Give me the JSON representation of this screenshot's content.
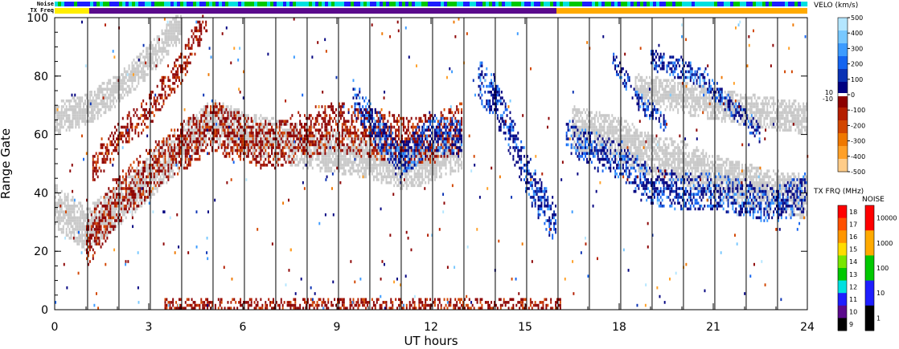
{
  "strips": {
    "noise_label": "Noise",
    "txfreq_label": "TX Freq",
    "noise_colors": [
      "#00c800",
      "#00e0e0",
      "#1e1eff"
    ],
    "txfreq_segments": [
      {
        "from_hour": 0,
        "to_hour": 1.1,
        "color": "#ffee00"
      },
      {
        "from_hour": 1.1,
        "to_hour": 16.0,
        "color": "#5a0a8c"
      },
      {
        "from_hour": 16.0,
        "to_hour": 24,
        "color": "#ffaa00"
      }
    ]
  },
  "chart_data": {
    "type": "heatmap",
    "title": "",
    "xlabel": "UT hours",
    "ylabel": "Range Gate",
    "xlim": [
      0,
      24
    ],
    "ylim": [
      0,
      100
    ],
    "x_ticks": [
      "0",
      "3",
      "6",
      "9",
      "12",
      "15",
      "18",
      "21",
      "24"
    ],
    "y_ticks": [
      "0",
      "20",
      "40",
      "60",
      "80",
      "100"
    ],
    "scan_boundaries_hours": [
      1.05,
      2.05,
      3.05,
      4.05,
      5.05,
      6.05,
      7.05,
      8.05,
      9.05,
      10.05,
      11.05,
      12.05,
      13.05,
      14.05,
      15.05,
      16.05,
      17.05,
      18.05,
      19.05,
      20.05,
      21.05,
      22.05,
      23.05
    ],
    "ground_scatter_color": "#c8c8c8",
    "bands": [
      {
        "name": "",
        "kind": "ground",
        "points": [
          [
            0,
            35
          ],
          [
            1,
            27
          ],
          [
            2,
            35
          ],
          [
            3,
            45
          ],
          [
            4,
            55
          ],
          [
            5,
            64
          ],
          [
            6,
            60
          ],
          [
            8,
            55
          ],
          [
            10,
            52
          ],
          [
            11,
            48
          ],
          [
            12,
            50
          ],
          [
            13,
            55
          ]
        ],
        "width": 7
      },
      {
        "name": "",
        "kind": "ground",
        "points": [
          [
            0,
            65
          ],
          [
            1,
            68
          ],
          [
            2,
            75
          ],
          [
            3,
            85
          ],
          [
            4,
            97
          ]
        ],
        "width": 5
      },
      {
        "name": "",
        "kind": "ground",
        "points": [
          [
            16.5,
            62
          ],
          [
            18,
            58
          ],
          [
            19,
            52
          ],
          [
            20,
            50
          ],
          [
            21,
            45
          ],
          [
            22,
            42
          ],
          [
            23,
            40
          ],
          [
            24,
            38
          ]
        ],
        "width": 7
      },
      {
        "name": "",
        "kind": "ground",
        "points": [
          [
            18.5,
            75
          ],
          [
            20,
            72
          ],
          [
            22,
            68
          ],
          [
            24,
            65
          ]
        ],
        "width": 5
      },
      {
        "name": "",
        "kind": "negative",
        "points": [
          [
            1,
            22
          ],
          [
            2,
            37
          ],
          [
            3,
            47
          ],
          [
            4,
            55
          ],
          [
            5,
            62
          ],
          [
            6,
            58
          ],
          [
            7,
            55
          ],
          [
            8,
            60
          ],
          [
            9,
            62
          ],
          [
            10,
            60
          ],
          [
            11,
            58
          ],
          [
            12,
            58
          ],
          [
            13,
            62
          ]
        ],
        "width": 8
      },
      {
        "name": "",
        "kind": "negative",
        "points": [
          [
            1.2,
            48
          ],
          [
            2,
            58
          ],
          [
            3,
            68
          ],
          [
            4,
            82
          ],
          [
            4.8,
            100
          ]
        ],
        "width": 5
      },
      {
        "name": "",
        "kind": "positive",
        "points": [
          [
            9.5,
            72
          ],
          [
            10.5,
            58
          ],
          [
            11,
            50
          ],
          [
            12,
            60
          ],
          [
            13,
            58
          ]
        ],
        "width": 6
      },
      {
        "name": "",
        "kind": "positive",
        "points": [
          [
            13.5,
            78
          ],
          [
            14,
            72
          ],
          [
            14.7,
            55
          ],
          [
            15.3,
            40
          ],
          [
            16,
            28
          ]
        ],
        "width": 7
      },
      {
        "name": "",
        "kind": "positive",
        "points": [
          [
            16.3,
            60
          ],
          [
            17,
            55
          ],
          [
            18,
            50
          ],
          [
            19,
            42
          ],
          [
            20,
            40
          ],
          [
            21,
            40
          ],
          [
            22,
            38
          ],
          [
            23,
            35
          ],
          [
            24,
            40
          ]
        ],
        "width": 6
      },
      {
        "name": "",
        "kind": "positive",
        "points": [
          [
            17.8,
            85
          ],
          [
            18.5,
            72
          ],
          [
            19.5,
            63
          ]
        ],
        "width": 3
      },
      {
        "name": "",
        "kind": "positive",
        "points": [
          [
            19,
            85
          ],
          [
            20.5,
            80
          ],
          [
            21.5,
            70
          ],
          [
            22.5,
            60
          ]
        ],
        "width": 3
      },
      {
        "name": "",
        "kind": "negative",
        "points": [
          [
            3.5,
            1
          ],
          [
            6,
            1
          ],
          [
            9,
            1
          ],
          [
            12,
            1
          ],
          [
            15,
            1
          ],
          [
            16.2,
            1
          ]
        ],
        "width": 2
      }
    ],
    "velocity_scale": {
      "title": "VELO (km/s)",
      "tick_labels": [
        "500",
        "400",
        "300",
        "200",
        "100",
        "0",
        "-100",
        "-200",
        "-300",
        "-400",
        "-500"
      ],
      "side_labels": [
        "10",
        "-10"
      ],
      "colors": [
        "#b4e6ff",
        "#78c8ff",
        "#3c9bff",
        "#1464f0",
        "#0a32b4",
        "#000080",
        "#8c0000",
        "#b41e00",
        "#d24600",
        "#ef7800",
        "#ffa028",
        "#ffcc88"
      ]
    },
    "txfreq_scale": {
      "title": "TX FRQ (MHz)",
      "tick_labels": [
        "18",
        "17",
        "16",
        "15",
        "14",
        "13",
        "12",
        "11",
        "10",
        "9"
      ],
      "colors": [
        "#ff0000",
        "#ff5000",
        "#ff9600",
        "#ffdc00",
        "#78e600",
        "#00c800",
        "#00e0e0",
        "#1e1eff",
        "#5a0a8c",
        "#000000"
      ]
    },
    "noise_scale": {
      "title": "NOISE",
      "tick_labels": [
        "10000",
        "1000",
        "100",
        "10",
        "1"
      ],
      "colors": [
        "#ff0000",
        "#ffaa00",
        "#00c800",
        "#1e1eff",
        "#000000"
      ]
    }
  }
}
